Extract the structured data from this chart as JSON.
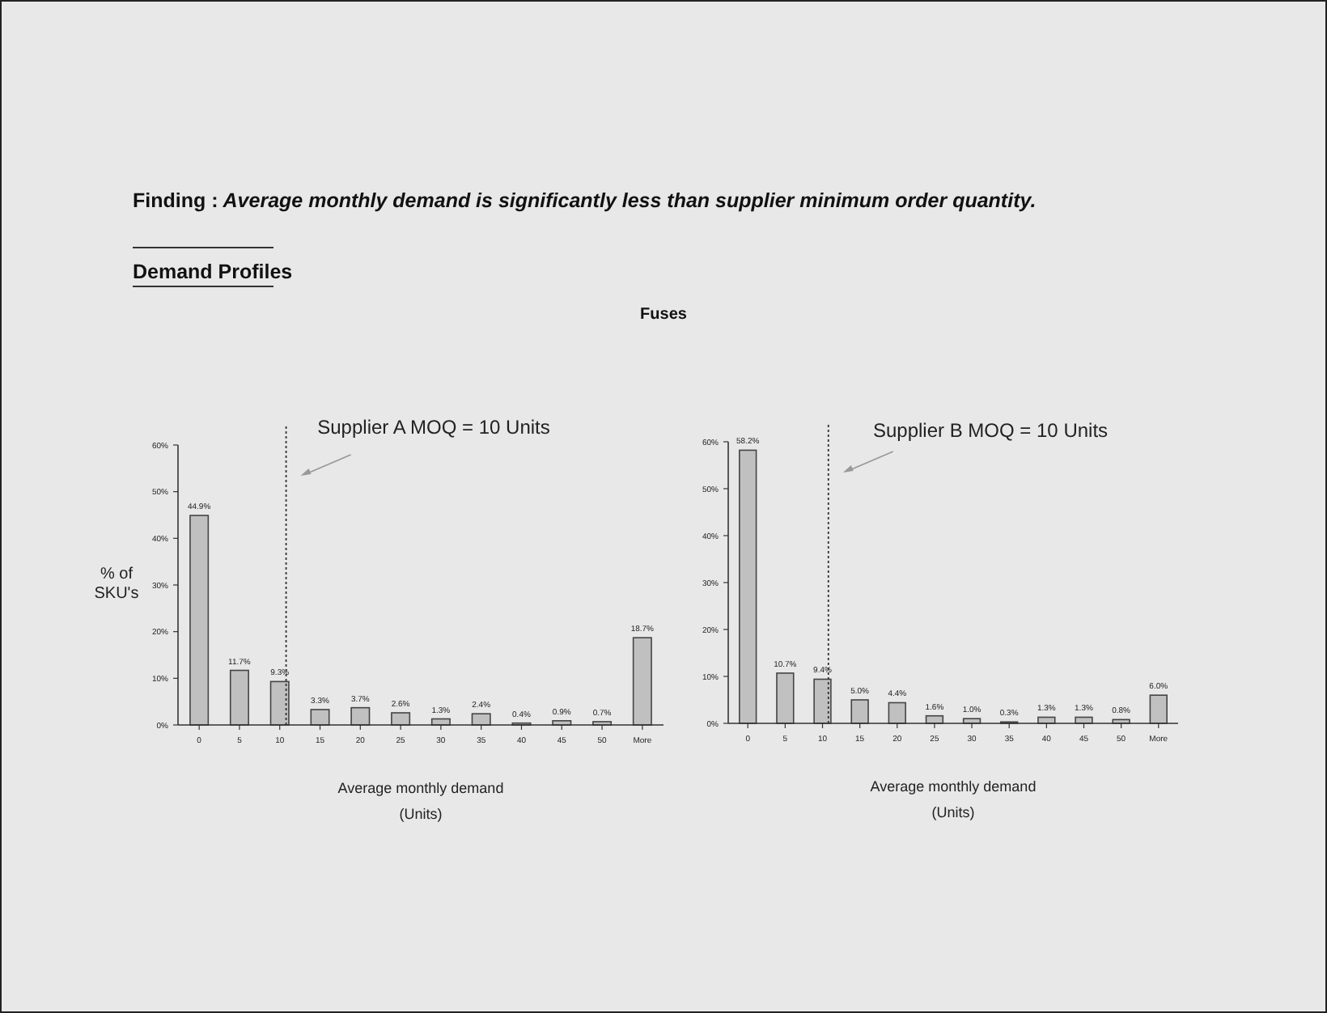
{
  "chart_data": [
    {
      "type": "bar",
      "title": "Supplier A MOQ = 10 Units",
      "ylabel": "% of SKU's",
      "xlabel": "Average monthly demand (Units)",
      "annotations": [
        "Finding : Average monthly demand is significantly less than supplier minimum order quantity.",
        "Demand Profiles",
        "Fuses"
      ],
      "categories": [
        "0",
        "5",
        "10",
        "15",
        "20",
        "25",
        "30",
        "35",
        "40",
        "45",
        "50",
        "More"
      ],
      "values": [
        44.9,
        11.7,
        9.3,
        3.3,
        3.7,
        2.6,
        1.3,
        2.4,
        0.4,
        0.9,
        0.7,
        18.7
      ],
      "value_labels": [
        "44.9%",
        "11.7%",
        "9.3%",
        "3.3%",
        "3.7%",
        "2.6%",
        "1.3%",
        "2.4%",
        "0.4%",
        "0.9%",
        "0.7%",
        "18.7%"
      ],
      "color": "#c0c0c0",
      "ylim": [
        0,
        60
      ],
      "yticks": [
        {
          "value": 0,
          "label": "0%"
        },
        {
          "value": 10,
          "label": "10%"
        },
        {
          "value": 20,
          "label": "20%"
        },
        {
          "value": 30,
          "label": "30%"
        },
        {
          "value": 40,
          "label": "40%"
        },
        {
          "value": 50,
          "label": "50%"
        },
        {
          "value": 60,
          "label": "60%"
        }
      ],
      "ref_lines": [
        {
          "axis": "x",
          "value": "10",
          "line_style": "dotted"
        }
      ]
    },
    {
      "type": "bar",
      "title": "Supplier B MOQ = 10 Units",
      "xlabel": "Average monthly demand (Units)",
      "categories": [
        "0",
        "5",
        "10",
        "15",
        "20",
        "25",
        "30",
        "35",
        "40",
        "45",
        "50",
        "More"
      ],
      "values": [
        58.2,
        10.7,
        9.4,
        5.0,
        4.4,
        1.6,
        1.0,
        0.3,
        1.3,
        1.3,
        0.8,
        6.0
      ],
      "value_labels": [
        "58.2%",
        "10.7%",
        "9.4%",
        "5.0%",
        "4.4%",
        "1.6%",
        "1.0%",
        "0.3%",
        "1.3%",
        "1.3%",
        "0.8%",
        "6.0%"
      ],
      "color": "#c0c0c0",
      "ylim": [
        0,
        60
      ],
      "yticks": [
        {
          "value": 0,
          "label": "0%"
        },
        {
          "value": 10,
          "label": "10%"
        },
        {
          "value": 20,
          "label": "20%"
        },
        {
          "value": 30,
          "label": "30%"
        },
        {
          "value": 40,
          "label": "40%"
        },
        {
          "value": 50,
          "label": "50%"
        },
        {
          "value": 60,
          "label": "60%"
        }
      ],
      "ref_lines": [
        {
          "axis": "x",
          "value": "10",
          "line_style": "dotted"
        }
      ]
    }
  ]
}
